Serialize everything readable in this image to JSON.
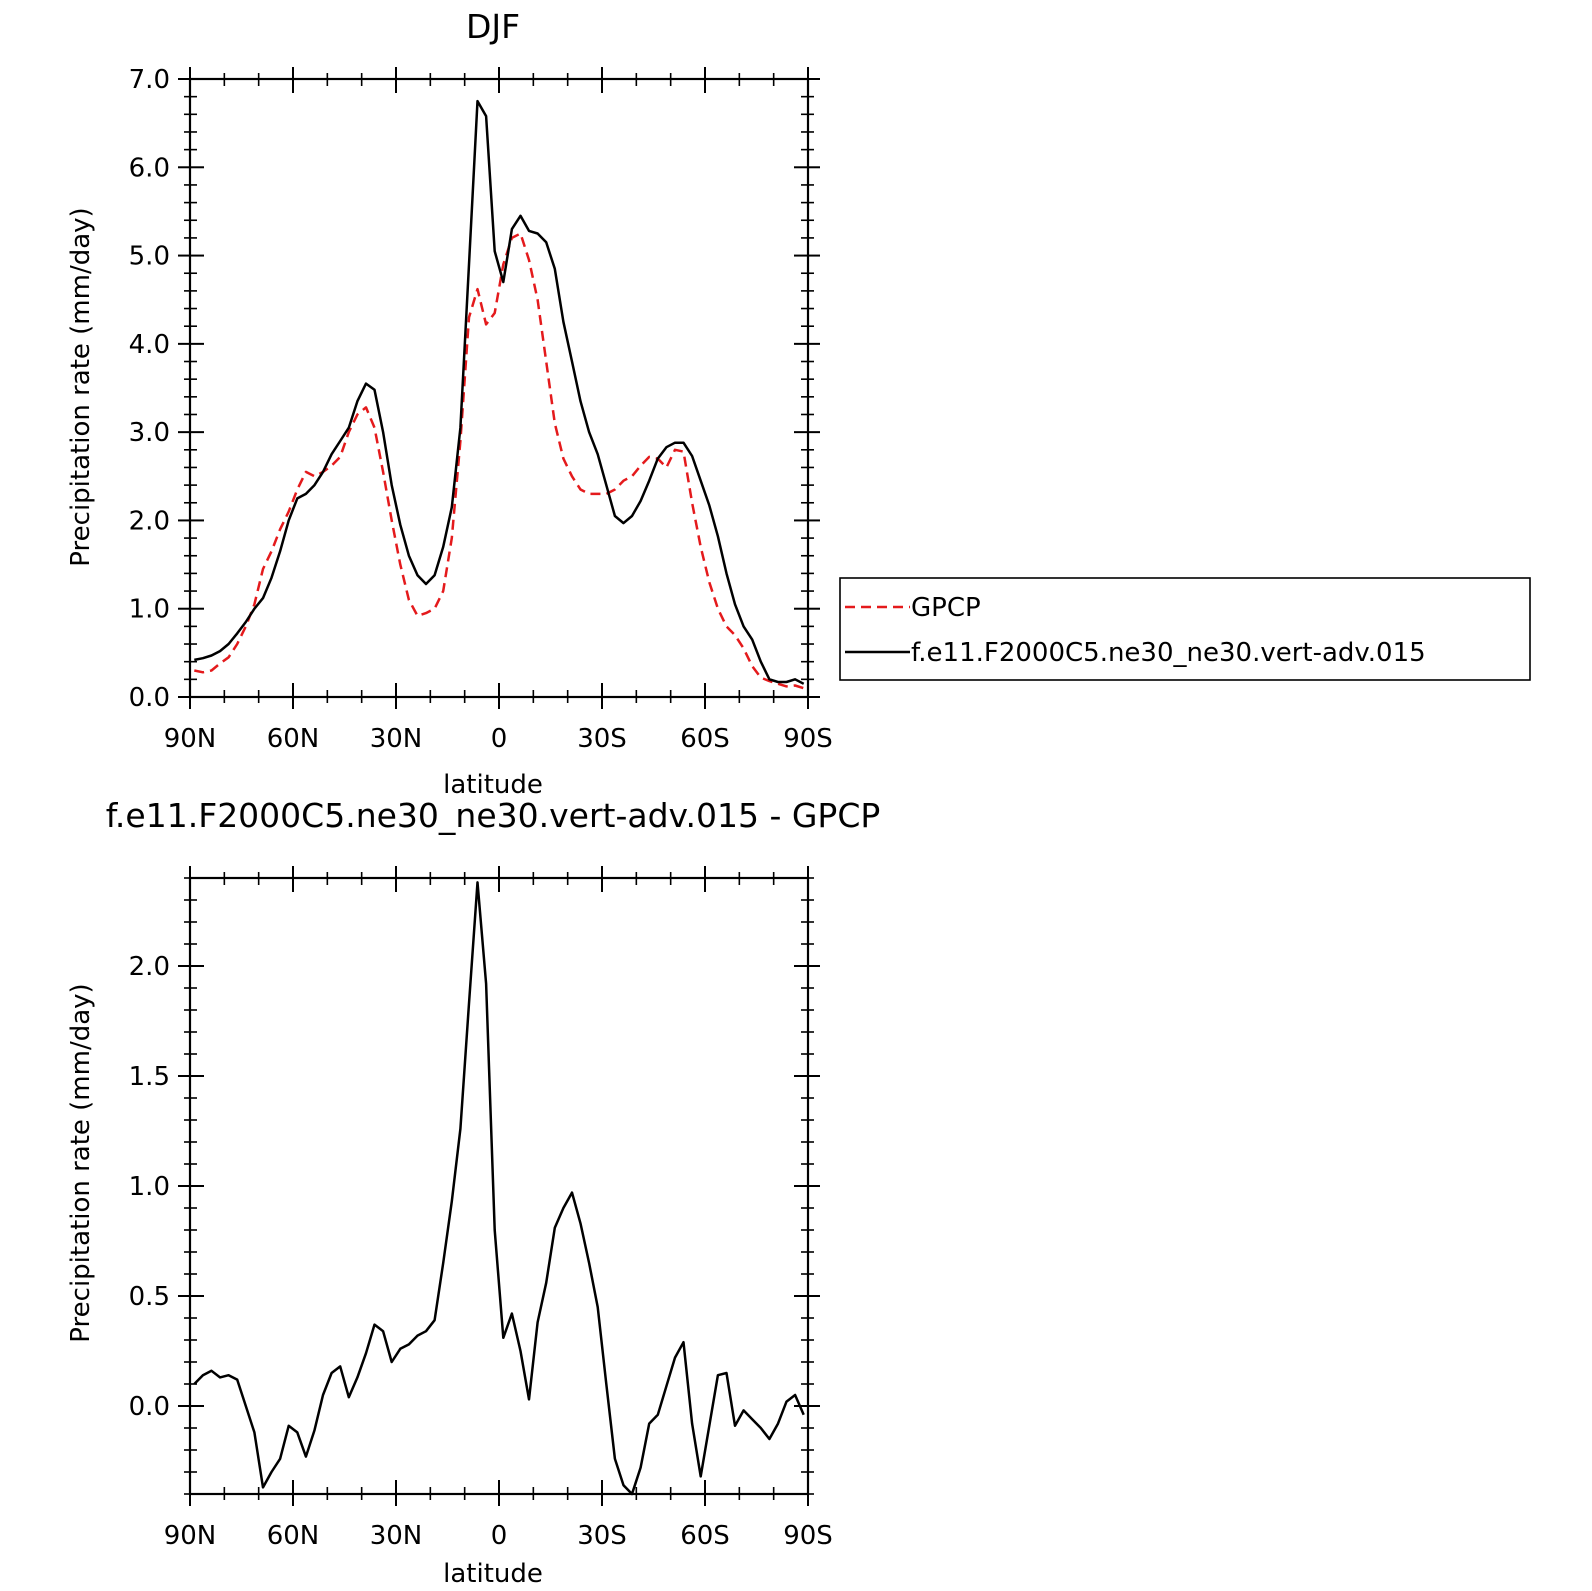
{
  "chart_data": [
    {
      "type": "line",
      "title": "DJF",
      "xlabel": "latitude",
      "ylabel": "Precipitation rate (mm/day)",
      "xlim": [
        90,
        -90
      ],
      "ylim": [
        0.0,
        7.0
      ],
      "xticks": [
        90,
        60,
        30,
        0,
        -30,
        -60,
        -90
      ],
      "xtick_labels": [
        "90N",
        "60N",
        "30N",
        "0",
        "30S",
        "60S",
        "90S"
      ],
      "yticks": [
        0.0,
        1.0,
        2.0,
        3.0,
        4.0,
        5.0,
        6.0,
        7.0
      ],
      "ytick_labels": [
        "0.0",
        "1.0",
        "2.0",
        "3.0",
        "4.0",
        "5.0",
        "6.0",
        "7.0"
      ],
      "legend_position": "right",
      "series": [
        {
          "name": "GPCP",
          "color": "#e41a1c",
          "style": "dashed",
          "x": [
            88.75,
            86.25,
            83.75,
            81.25,
            78.75,
            76.25,
            73.75,
            71.25,
            68.75,
            66.25,
            63.75,
            61.25,
            58.75,
            56.25,
            53.75,
            51.25,
            48.75,
            46.25,
            43.75,
            41.25,
            38.75,
            36.25,
            33.75,
            31.25,
            28.75,
            26.25,
            23.75,
            21.25,
            18.75,
            16.25,
            13.75,
            11.25,
            8.75,
            6.25,
            3.75,
            1.25,
            -1.25,
            -3.75,
            -6.25,
            -8.75,
            -11.25,
            -13.75,
            -16.25,
            -18.75,
            -21.25,
            -23.75,
            -26.25,
            -28.75,
            -31.25,
            -33.75,
            -36.25,
            -38.75,
            -41.25,
            -43.75,
            -46.25,
            -48.75,
            -51.25,
            -53.75,
            -56.25,
            -58.75,
            -61.25,
            -63.75,
            -66.25,
            -68.75,
            -71.25,
            -73.75,
            -76.25,
            -78.75,
            -81.25,
            -83.75,
            -86.25,
            -88.75
          ],
          "values": [
            0.3,
            0.28,
            0.3,
            0.38,
            0.45,
            0.6,
            0.8,
            1.05,
            1.45,
            1.65,
            1.9,
            2.1,
            2.35,
            2.55,
            2.5,
            2.55,
            2.62,
            2.72,
            3.0,
            3.2,
            3.28,
            3.05,
            2.55,
            2.0,
            1.5,
            1.1,
            0.92,
            0.95,
            1.0,
            1.2,
            1.8,
            2.9,
            4.3,
            4.62,
            4.22,
            4.35,
            4.9,
            5.2,
            5.25,
            4.95,
            4.5,
            3.8,
            3.1,
            2.7,
            2.5,
            2.35,
            2.3,
            2.3,
            2.3,
            2.35,
            2.45,
            2.5,
            2.62,
            2.72,
            2.7,
            2.6,
            2.8,
            2.78,
            2.2,
            1.7,
            1.3,
            1.0,
            0.8,
            0.7,
            0.55,
            0.35,
            0.22,
            0.18,
            0.15,
            0.12,
            0.13,
            0.1
          ]
        },
        {
          "name": "f.e11.F2000C5.ne30_ne30.vert-adv.015",
          "color": "#000000",
          "style": "solid",
          "x": [
            88.75,
            86.25,
            83.75,
            81.25,
            78.75,
            76.25,
            73.75,
            71.25,
            68.75,
            66.25,
            63.75,
            61.25,
            58.75,
            56.25,
            53.75,
            51.25,
            48.75,
            46.25,
            43.75,
            41.25,
            38.75,
            36.25,
            33.75,
            31.25,
            28.75,
            26.25,
            23.75,
            21.25,
            18.75,
            16.25,
            13.75,
            11.25,
            8.75,
            6.25,
            3.75,
            1.25,
            -1.25,
            -3.75,
            -6.25,
            -8.75,
            -11.25,
            -13.75,
            -16.25,
            -18.75,
            -21.25,
            -23.75,
            -26.25,
            -28.75,
            -31.25,
            -33.75,
            -36.25,
            -38.75,
            -41.25,
            -43.75,
            -46.25,
            -48.75,
            -51.25,
            -53.75,
            -56.25,
            -58.75,
            -61.25,
            -63.75,
            -66.25,
            -68.75,
            -71.25,
            -73.75,
            -76.25,
            -78.75,
            -81.25,
            -83.75,
            -86.25,
            -88.75
          ],
          "values": [
            0.42,
            0.44,
            0.47,
            0.52,
            0.6,
            0.72,
            0.85,
            1.0,
            1.12,
            1.35,
            1.65,
            2.0,
            2.25,
            2.3,
            2.4,
            2.55,
            2.75,
            2.9,
            3.05,
            3.35,
            3.55,
            3.48,
            3.0,
            2.4,
            1.95,
            1.6,
            1.38,
            1.28,
            1.38,
            1.7,
            2.15,
            3.05,
            4.9,
            6.75,
            6.58,
            5.05,
            4.7,
            5.3,
            5.45,
            5.28,
            5.25,
            5.15,
            4.85,
            4.25,
            3.8,
            3.35,
            3.0,
            2.75,
            2.4,
            2.05,
            1.97,
            2.05,
            2.22,
            2.45,
            2.7,
            2.83,
            2.88,
            2.88,
            2.73,
            2.45,
            2.17,
            1.82,
            1.4,
            1.05,
            0.8,
            0.65,
            0.4,
            0.2,
            0.17,
            0.17,
            0.2,
            0.15
          ]
        }
      ]
    },
    {
      "type": "line",
      "title": "f.e11.F2000C5.ne30_ne30.vert-adv.015 - GPCP",
      "xlabel": "latitude",
      "ylabel": "Precipitation rate (mm/day)",
      "xlim": [
        90,
        -90
      ],
      "ylim": [
        -0.4,
        2.4
      ],
      "xticks": [
        90,
        60,
        30,
        0,
        -30,
        -60,
        -90
      ],
      "xtick_labels": [
        "90N",
        "60N",
        "30N",
        "0",
        "30S",
        "60S",
        "90S"
      ],
      "yticks": [
        0.0,
        0.5,
        1.0,
        1.5,
        2.0
      ],
      "ytick_labels": [
        "0.0",
        "0.5",
        "1.0",
        "1.5",
        "2.0"
      ],
      "series": [
        {
          "color": "#000000",
          "style": "solid",
          "x": [
            88.75,
            86.25,
            83.75,
            81.25,
            78.75,
            76.25,
            73.75,
            71.25,
            68.75,
            66.25,
            63.75,
            61.25,
            58.75,
            56.25,
            53.75,
            51.25,
            48.75,
            46.25,
            43.75,
            41.25,
            38.75,
            36.25,
            33.75,
            31.25,
            28.75,
            26.25,
            23.75,
            21.25,
            18.75,
            16.25,
            13.75,
            11.25,
            8.75,
            6.25,
            3.75,
            1.25,
            -1.25,
            -3.75,
            -6.25,
            -8.75,
            -11.25,
            -13.75,
            -16.25,
            -18.75,
            -21.25,
            -23.75,
            -26.25,
            -28.75,
            -31.25,
            -33.75,
            -36.25,
            -38.75,
            -41.25,
            -43.75,
            -46.25,
            -48.75,
            -51.25,
            -53.75,
            -56.25,
            -58.75,
            -61.25,
            -63.75,
            -66.25,
            -68.75,
            -71.25,
            -73.75,
            -76.25,
            -78.75,
            -81.25,
            -83.75,
            -86.25,
            -88.75
          ],
          "values": [
            0.1,
            0.14,
            0.16,
            0.13,
            0.14,
            0.12,
            0.0,
            -0.12,
            -0.37,
            -0.3,
            -0.24,
            -0.09,
            -0.12,
            -0.23,
            -0.11,
            0.05,
            0.15,
            0.18,
            0.04,
            0.13,
            0.24,
            0.37,
            0.34,
            0.2,
            0.26,
            0.28,
            0.32,
            0.34,
            0.39,
            0.65,
            0.93,
            1.26,
            1.83,
            2.38,
            1.92,
            0.8,
            0.31,
            0.42,
            0.25,
            0.03,
            0.38,
            0.56,
            0.81,
            0.9,
            0.97,
            0.83,
            0.65,
            0.45,
            0.1,
            -0.24,
            -0.36,
            -0.4,
            -0.28,
            -0.08,
            -0.04,
            0.09,
            0.22,
            0.29,
            -0.08,
            -0.32,
            -0.09,
            0.14,
            0.15,
            -0.09,
            -0.02,
            -0.06,
            -0.1,
            -0.15,
            -0.08,
            0.02,
            0.05,
            -0.04
          ]
        }
      ]
    }
  ]
}
